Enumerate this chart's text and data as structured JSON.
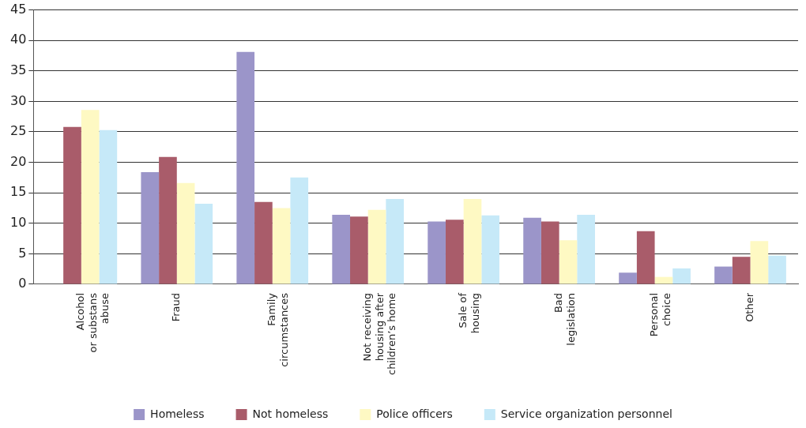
{
  "chart_data": {
    "type": "bar",
    "categories": [
      "Alcohol\nor substans\nabuse",
      "Fraud",
      "Family\ncircumstances",
      "Not receiving\nhousing after\nchildren’s home",
      "Sale of\nhousing",
      "Bad\nlegislation",
      "Personal\nchoice",
      "Other"
    ],
    "series": [
      {
        "name": "Homeless",
        "color": "#9b95c9",
        "values": [
          null,
          18.4,
          38.1,
          11.4,
          10.3,
          10.9,
          1.9,
          2.9
        ]
      },
      {
        "name": "Not homeless",
        "color": "#a95c6a",
        "values": [
          25.8,
          20.9,
          13.5,
          11.1,
          10.6,
          10.3,
          8.7,
          4.5
        ]
      },
      {
        "name": "Police officers",
        "color": "#fef9c3",
        "values": [
          28.6,
          16.6,
          12.5,
          12.2,
          14.0,
          7.2,
          1.2,
          7.1
        ]
      },
      {
        "name": "Service organization personnel",
        "color": "#c6e9f8",
        "values": [
          25.3,
          13.2,
          17.5,
          14.0,
          11.3,
          11.4,
          2.6,
          4.7
        ]
      }
    ],
    "ylim": [
      0,
      45
    ],
    "yticks": [
      0,
      5,
      10,
      15,
      20,
      25,
      30,
      35,
      40,
      45
    ],
    "grid": "y",
    "legend": "bottom"
  }
}
